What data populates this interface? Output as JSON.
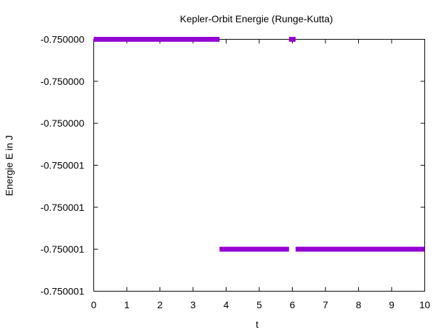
{
  "chart_data": {
    "type": "line",
    "title": "Kepler-Orbit Energie (Runge-Kutta)",
    "xlabel": "t",
    "ylabel": "Energie E in J",
    "xlim": [
      0,
      10
    ],
    "x_ticks": [
      "0",
      "1",
      "2",
      "3",
      "4",
      "5",
      "6",
      "7",
      "8",
      "9",
      "10"
    ],
    "y_tick_labels": [
      "-0.750000",
      "-0.750000",
      "-0.750000",
      "-0.750001",
      "-0.750001",
      "-0.750001",
      "-0.750001"
    ],
    "grid": false,
    "legend": "none",
    "series_color": "#9400d3",
    "series": [
      {
        "segments": [
          {
            "x_start": 0.0,
            "x_end": 3.8,
            "level": "-0.750000",
            "tick_index": 0
          },
          {
            "x_start": 3.8,
            "x_end": 5.9,
            "level": "-0.750001",
            "tick_index": 5
          },
          {
            "x_start": 5.9,
            "x_end": 6.1,
            "level": "-0.750000",
            "tick_index": 0
          },
          {
            "x_start": 6.1,
            "x_end": 10.0,
            "level": "-0.750001",
            "tick_index": 5
          }
        ]
      }
    ]
  }
}
